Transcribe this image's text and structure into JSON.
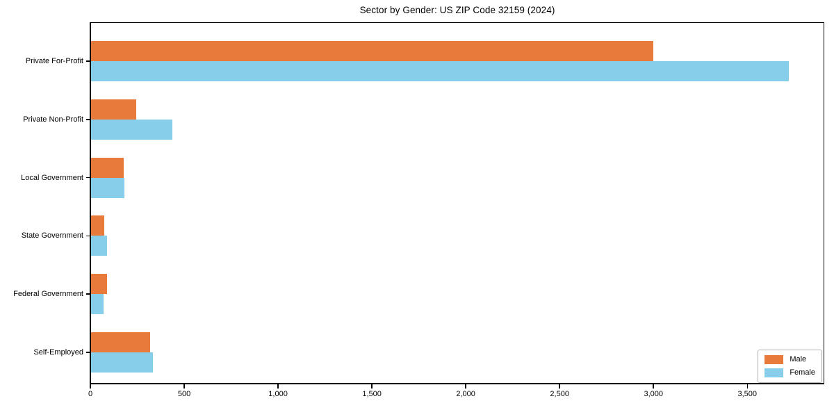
{
  "chart_data": {
    "type": "bar",
    "orientation": "horizontal",
    "title": "Sector by Gender: US ZIP Code 32159 (2024)",
    "categories": [
      "Private For-Profit",
      "Private Non-Profit",
      "Local Government",
      "State Government",
      "Federal Government",
      "Self-Employed"
    ],
    "series": [
      {
        "name": "Male",
        "color": "#e87a3c",
        "values": [
          3000,
          245,
          178,
          75,
          88,
          318
        ]
      },
      {
        "name": "Female",
        "color": "#87ceeb",
        "values": [
          3720,
          437,
          182,
          88,
          72,
          333
        ]
      }
    ],
    "xlabel": "",
    "ylabel": "",
    "xlim": [
      0,
      3910
    ],
    "xticks": [
      0,
      500,
      1000,
      1500,
      2000,
      2500,
      3000,
      3500
    ],
    "xtick_labels": [
      "0",
      "500",
      "1,000",
      "1,500",
      "2,000",
      "2,500",
      "3,000",
      "3,500"
    ],
    "grid": false,
    "legend": {
      "position": "lower right"
    }
  },
  "colors": {
    "male": "#e87a3c",
    "female": "#87ceeb",
    "axis": "#000000",
    "legend_border": "#b0b0b0",
    "background": "#ffffff"
  }
}
